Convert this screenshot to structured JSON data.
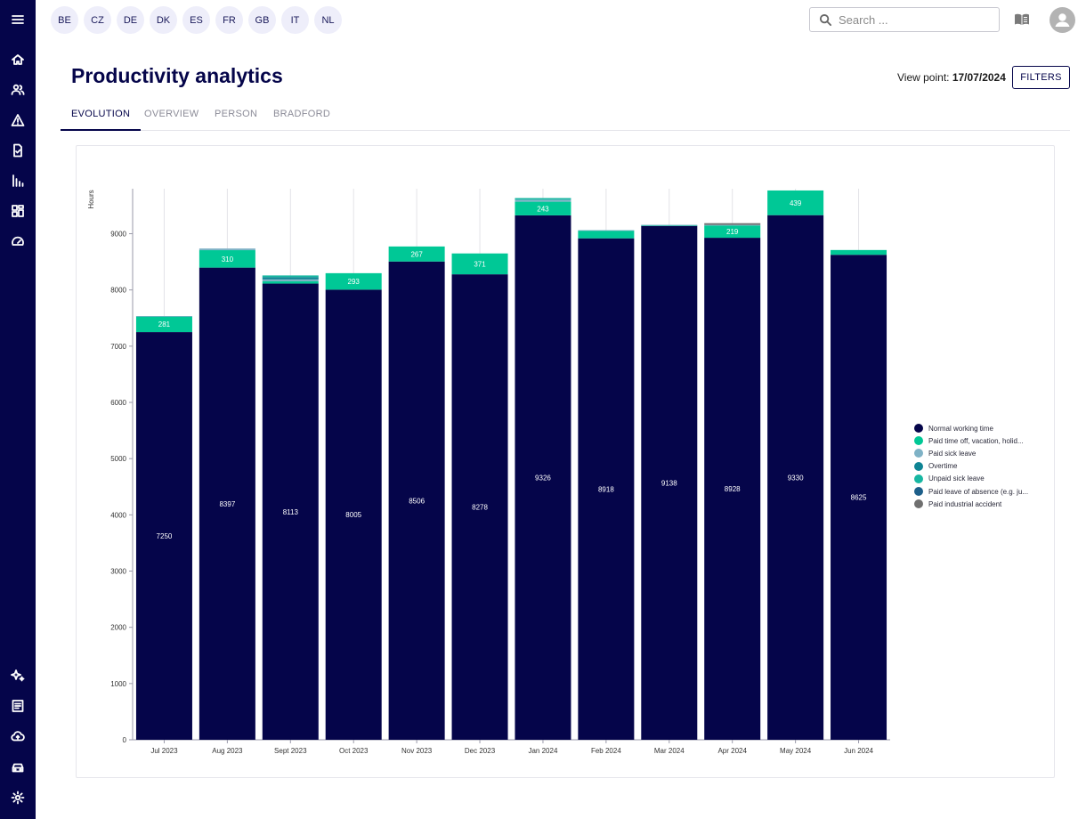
{
  "countries": [
    "BE",
    "CZ",
    "DE",
    "DK",
    "ES",
    "FR",
    "GB",
    "IT",
    "NL"
  ],
  "search": {
    "placeholder": "Search ..."
  },
  "page": {
    "title": "Productivity analytics",
    "viewpoint_label": "View point:",
    "viewpoint_date": "17/07/2024",
    "filters_label": "FILTERS"
  },
  "tabs": [
    "EVOLUTION",
    "OVERVIEW",
    "PERSON",
    "BRADFORD"
  ],
  "colors": {
    "sidebar": "#05054a",
    "normal": "#05054a",
    "paid_time_off": "#00c896",
    "paid_sick": "#7fb2c6",
    "overtime": "#0e8494",
    "unpaid_sick": "#18b7a2",
    "leave_absence": "#1d5f8a",
    "industrial": "#6f6f6f"
  },
  "chart_data": {
    "type": "bar",
    "stacked": true,
    "ylabel": "Hours",
    "ylim": [
      0,
      9800
    ],
    "yticks": [
      0,
      1000,
      2000,
      3000,
      4000,
      5000,
      6000,
      7000,
      8000,
      9000
    ],
    "categories": [
      "Jul 2023",
      "Aug 2023",
      "Sept 2023",
      "Oct 2023",
      "Nov 2023",
      "Dec 2023",
      "Jan 2024",
      "Feb 2024",
      "Mar 2024",
      "Apr 2024",
      "May 2024",
      "Jun 2024"
    ],
    "series": [
      {
        "name": "Normal working time",
        "color": "#05054a",
        "values": [
          7250,
          8397,
          8113,
          8005,
          8506,
          8278,
          9326,
          8918,
          9138,
          8928,
          9330,
          8625
        ]
      },
      {
        "name": "Paid time off, vacation, holid...",
        "color": "#00c896",
        "values": [
          281,
          310,
          40,
          293,
          267,
          371,
          243,
          140,
          15,
          219,
          439,
          85
        ]
      },
      {
        "name": "Paid sick leave",
        "color": "#7fb2c6",
        "values": [
          5,
          30,
          35,
          0,
          0,
          0,
          35,
          5,
          5,
          10,
          0,
          0
        ]
      },
      {
        "name": "Overtime",
        "color": "#0e8494",
        "values": [
          0,
          0,
          40,
          0,
          0,
          0,
          0,
          0,
          0,
          0,
          0,
          0
        ]
      },
      {
        "name": "Unpaid sick leave",
        "color": "#18b7a2",
        "values": [
          0,
          0,
          30,
          0,
          0,
          0,
          30,
          0,
          0,
          0,
          0,
          0
        ]
      },
      {
        "name": "Paid leave of absence (e.g. ju...",
        "color": "#1d5f8a",
        "values": [
          0,
          0,
          0,
          0,
          0,
          0,
          0,
          0,
          0,
          0,
          0,
          0
        ]
      },
      {
        "name": "Paid industrial accident",
        "color": "#6f6f6f",
        "values": [
          0,
          0,
          0,
          0,
          0,
          0,
          0,
          0,
          0,
          30,
          0,
          0
        ]
      }
    ],
    "bar_labels": {
      "Normal working time": [
        7250,
        8397,
        8113,
        8005,
        8506,
        8278,
        9326,
        8918,
        9138,
        8928,
        9330,
        8625
      ],
      "Paid time off, vacation, holid...": [
        281,
        310,
        null,
        293,
        267,
        371,
        243,
        null,
        null,
        219,
        439,
        null
      ]
    }
  }
}
